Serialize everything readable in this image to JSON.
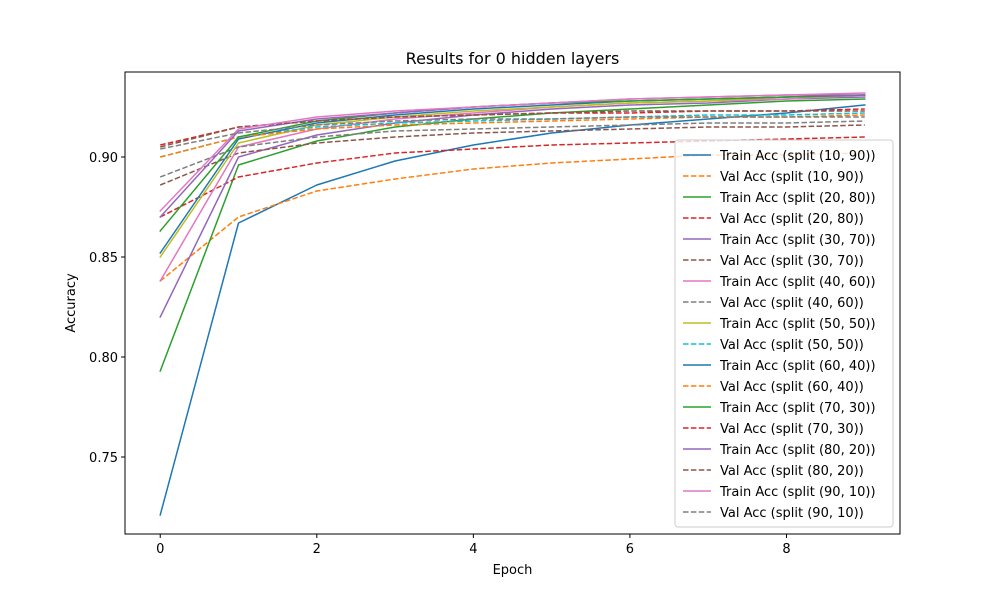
{
  "chart_data": {
    "type": "line",
    "title": "Results for 0 hidden layers",
    "xlabel": "Epoch",
    "ylabel": "Accuracy",
    "xlim": [
      -0.45,
      9.45
    ],
    "ylim": [
      0.7115,
      0.9425
    ],
    "xticks": [
      0,
      2,
      4,
      6,
      8
    ],
    "yticks": [
      0.75,
      0.8,
      0.85,
      0.9
    ],
    "x": [
      0,
      1,
      2,
      3,
      4,
      5,
      6,
      7,
      8,
      9
    ],
    "grid": false,
    "legend_position": "lower right",
    "series": [
      {
        "name": "Train Acc (split (10, 90))",
        "color": "#1f77b4",
        "dash": "solid",
        "values": [
          0.721,
          0.867,
          0.886,
          0.898,
          0.906,
          0.912,
          0.916,
          0.919,
          0.922,
          0.926
        ]
      },
      {
        "name": "Val Acc (split (10, 90))",
        "color": "#ff7f0e",
        "dash": "dashed",
        "values": [
          0.838,
          0.87,
          0.883,
          0.889,
          0.894,
          0.897,
          0.899,
          0.901,
          0.901,
          0.902
        ]
      },
      {
        "name": "Train Acc (split (20, 80))",
        "color": "#2ca02c",
        "dash": "solid",
        "values": [
          0.793,
          0.896,
          0.908,
          0.915,
          0.919,
          0.922,
          0.924,
          0.926,
          0.928,
          0.929
        ]
      },
      {
        "name": "Val Acc (split (20, 80))",
        "color": "#d62728",
        "dash": "dashed",
        "values": [
          0.87,
          0.89,
          0.897,
          0.902,
          0.904,
          0.906,
          0.907,
          0.908,
          0.909,
          0.91
        ]
      },
      {
        "name": "Train Acc (split (30, 70))",
        "color": "#9467bd",
        "dash": "solid",
        "values": [
          0.82,
          0.9,
          0.911,
          0.917,
          0.921,
          0.924,
          0.926,
          0.927,
          0.929,
          0.93
        ]
      },
      {
        "name": "Val Acc (split (30, 70))",
        "color": "#8c564b",
        "dash": "dashed",
        "values": [
          0.886,
          0.902,
          0.907,
          0.91,
          0.912,
          0.913,
          0.914,
          0.915,
          0.915,
          0.916
        ]
      },
      {
        "name": "Train Acc (split (40, 60))",
        "color": "#e377c2",
        "dash": "solid",
        "values": [
          0.838,
          0.905,
          0.914,
          0.919,
          0.922,
          0.925,
          0.927,
          0.928,
          0.929,
          0.931
        ]
      },
      {
        "name": "Val Acc (split (40, 60))",
        "color": "#7f7f7f",
        "dash": "dashed",
        "values": [
          0.89,
          0.905,
          0.91,
          0.913,
          0.914,
          0.915,
          0.916,
          0.917,
          0.917,
          0.918
        ]
      },
      {
        "name": "Train Acc (split (50, 50))",
        "color": "#bcbd22",
        "dash": "solid",
        "values": [
          0.85,
          0.907,
          0.916,
          0.92,
          0.923,
          0.925,
          0.927,
          0.928,
          0.93,
          0.931
        ]
      },
      {
        "name": "Val Acc (split (50, 50))",
        "color": "#17becf",
        "dash": "dashed",
        "values": [
          0.9,
          0.91,
          0.915,
          0.917,
          0.918,
          0.919,
          0.92,
          0.921,
          0.921,
          0.922
        ]
      },
      {
        "name": "Train Acc (split (60, 40))",
        "color": "#1f77b4",
        "dash": "solid",
        "values": [
          0.852,
          0.909,
          0.917,
          0.921,
          0.924,
          0.926,
          0.928,
          0.929,
          0.93,
          0.931
        ]
      },
      {
        "name": "Val Acc (split (60, 40))",
        "color": "#ff7f0e",
        "dash": "dashed",
        "values": [
          0.9,
          0.91,
          0.914,
          0.916,
          0.917,
          0.918,
          0.919,
          0.92,
          0.92,
          0.921
        ]
      },
      {
        "name": "Train Acc (split (70, 30))",
        "color": "#2ca02c",
        "dash": "solid",
        "values": [
          0.863,
          0.91,
          0.918,
          0.922,
          0.925,
          0.927,
          0.928,
          0.929,
          0.93,
          0.931
        ]
      },
      {
        "name": "Val Acc (split (70, 30))",
        "color": "#d62728",
        "dash": "dashed",
        "values": [
          0.906,
          0.915,
          0.918,
          0.92,
          0.921,
          0.922,
          0.922,
          0.923,
          0.923,
          0.924
        ]
      },
      {
        "name": "Train Acc (split (80, 20))",
        "color": "#9467bd",
        "dash": "solid",
        "values": [
          0.87,
          0.913,
          0.919,
          0.922,
          0.925,
          0.927,
          0.929,
          0.93,
          0.931,
          0.931
        ]
      },
      {
        "name": "Val Acc (split (80, 20))",
        "color": "#8c564b",
        "dash": "dashed",
        "values": [
          0.905,
          0.915,
          0.918,
          0.92,
          0.921,
          0.922,
          0.923,
          0.923,
          0.923,
          0.923
        ]
      },
      {
        "name": "Train Acc (split (90, 10))",
        "color": "#e377c2",
        "dash": "solid",
        "values": [
          0.873,
          0.914,
          0.92,
          0.923,
          0.925,
          0.927,
          0.929,
          0.93,
          0.931,
          0.932
        ]
      },
      {
        "name": "Val Acc (split (90, 10))",
        "color": "#7f7f7f",
        "dash": "dashed",
        "values": [
          0.904,
          0.912,
          0.916,
          0.918,
          0.919,
          0.919,
          0.92,
          0.92,
          0.92,
          0.92
        ]
      }
    ]
  }
}
